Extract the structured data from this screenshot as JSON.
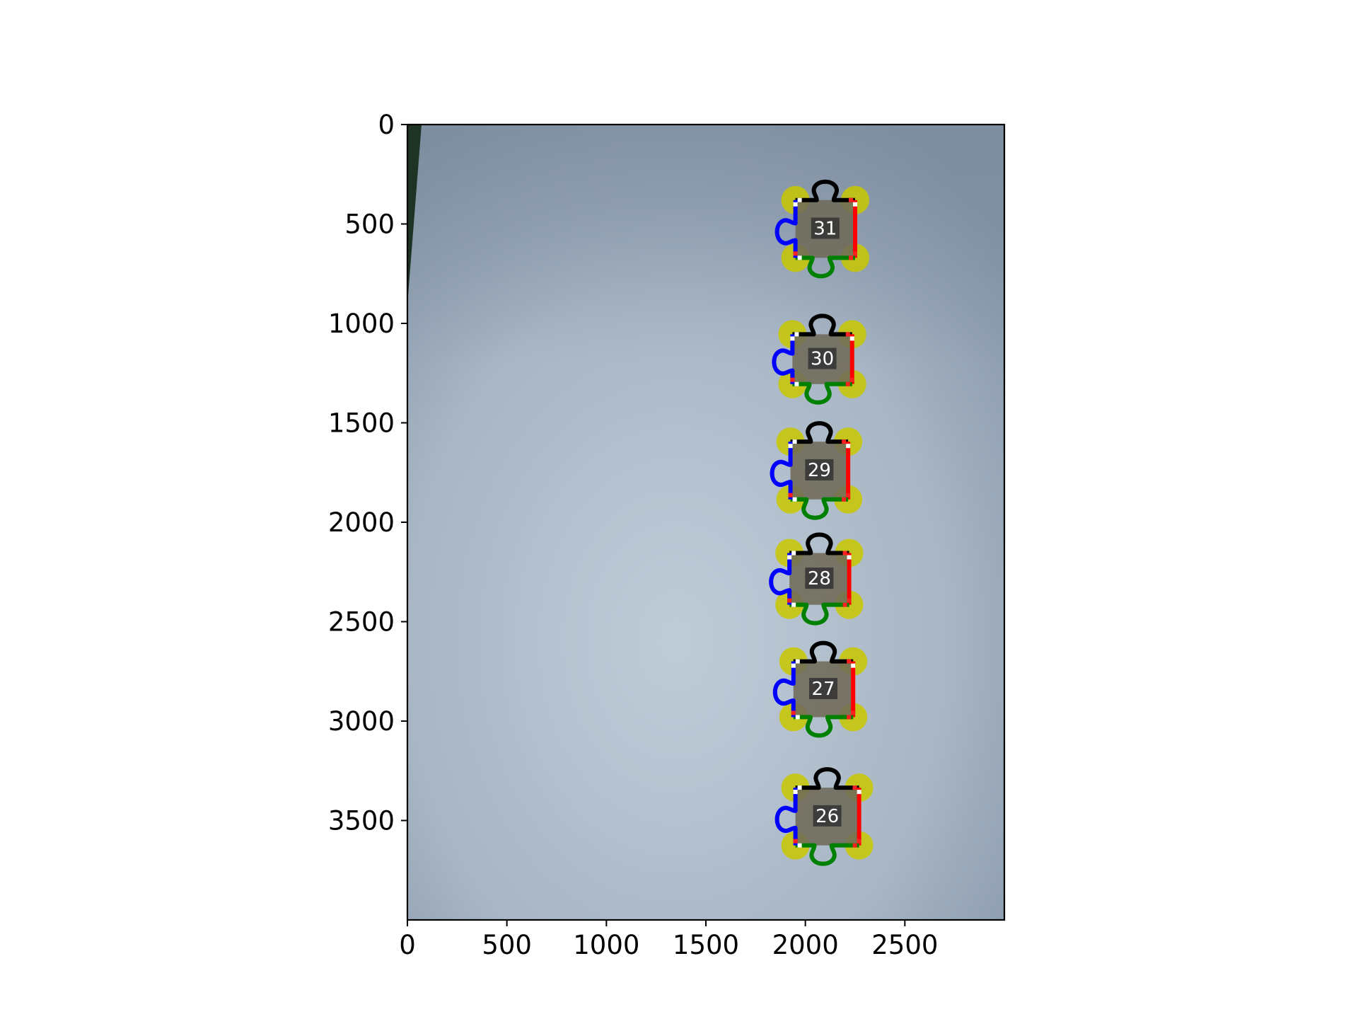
{
  "chart_data": {
    "type": "image",
    "title": "",
    "xlabel": "",
    "ylabel": "",
    "xlim": [
      0,
      3000
    ],
    "ylim": [
      4000,
      0
    ],
    "xticks": [
      "0",
      "500",
      "1000",
      "1500",
      "2000",
      "2500"
    ],
    "yticks": [
      "0",
      "500",
      "1000",
      "1500",
      "2000",
      "2500",
      "3000",
      "3500"
    ],
    "grid": false,
    "edge_colors": [
      "#000000",
      "#ff0000",
      "#008000",
      "#0000ff"
    ],
    "corner_color": "#c8c800",
    "pieces": [
      {
        "label": "31",
        "x": 2100,
        "y": 525,
        "width": 300,
        "height": 290
      },
      {
        "label": "30",
        "x": 2085,
        "y": 1180,
        "width": 300,
        "height": 250
      },
      {
        "label": "29",
        "x": 2070,
        "y": 1740,
        "width": 290,
        "height": 290
      },
      {
        "label": "28",
        "x": 2070,
        "y": 2285,
        "width": 300,
        "height": 260
      },
      {
        "label": "27",
        "x": 2090,
        "y": 2840,
        "width": 300,
        "height": 280
      },
      {
        "label": "26",
        "x": 2110,
        "y": 3480,
        "width": 320,
        "height": 290
      }
    ]
  }
}
